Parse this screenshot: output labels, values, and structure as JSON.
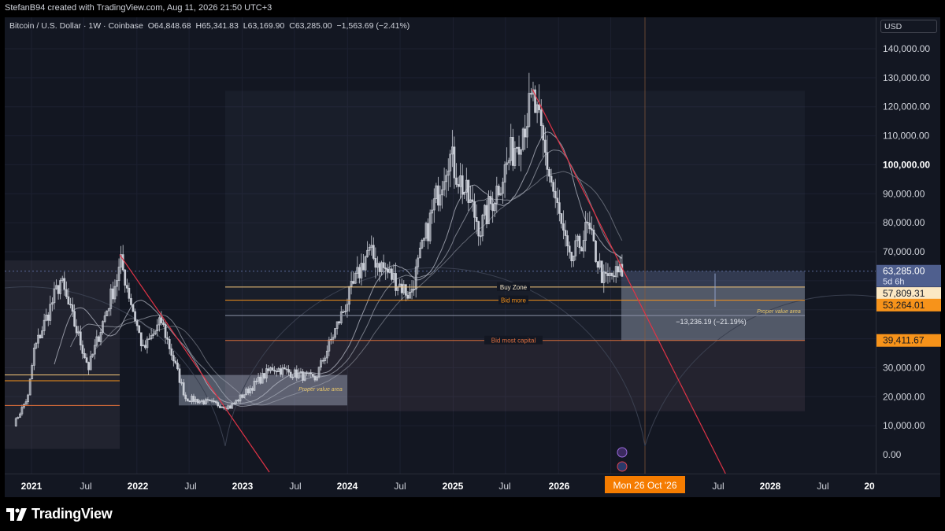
{
  "credit": "StefanB94 created with TradingView.com, Aug 11, 2026 21:50 UTC+3",
  "legend": {
    "symbol": "Bitcoin / U.S. Dollar · 1W · Coinbase",
    "open": "O64,848.68",
    "high": "H65,341.83",
    "low": "L63,169.90",
    "close": "C63,285.00",
    "change": "−1,563.69 (−2.41%)"
  },
  "currency": "USD",
  "brand": "TradingView",
  "colors": {
    "background": "#131722",
    "candles": "#c9cdd6",
    "orange": "#f7931a",
    "buy_zone": "#f6c77a",
    "downtrend": "#e03346",
    "ma": "#b8bcc8",
    "current_price": "#4f5f8e",
    "crosshair_label": "#f57c00"
  },
  "price_axis_labels": [
    "140,000.00",
    "130,000.00",
    "120,000.00",
    "110,000.00",
    "100,000.00",
    "90,000.00",
    "80,000.00",
    "70,000.00",
    "30,000.00",
    "20,000.00",
    "10,000.00",
    "0.00"
  ],
  "price_tags": {
    "current": "63,285.00",
    "countdown": "5d 6h",
    "buy_zone": "57,809.31",
    "bid_more": "53,264.01",
    "bid_most": "39,411.67"
  },
  "time_axis_labels": [
    "2021",
    "Jul",
    "2022",
    "Jul",
    "2023",
    "Jul",
    "2024",
    "Jul",
    "2025",
    "Jul",
    "2026",
    "Jul",
    "2028",
    "Jul",
    "20"
  ],
  "crosshair_date": "Mon 26 Oct '26",
  "annotations": {
    "buy_zone": "Buy Zone",
    "bid_more": "Bid more",
    "bid_most_capital": "Bid most capital",
    "proper_value_area": "Proper value area",
    "measure": "−13,236.19 (−21.19%)"
  },
  "chart_data": {
    "type": "candlestick",
    "symbol": "BTCUSD",
    "interval": "1W",
    "ylim": [
      0,
      145000
    ],
    "x_range": [
      "2020-11-01",
      "2028-11-15"
    ],
    "anchor_points": [
      {
        "date": "2020-11-01",
        "price": 10500
      },
      {
        "date": "2020-12-20",
        "price": 20000
      },
      {
        "date": "2021-01-10",
        "price": 36000
      },
      {
        "date": "2021-04-11",
        "price": 60000
      },
      {
        "date": "2021-07-18",
        "price": 30000
      },
      {
        "date": "2021-11-08",
        "price": 66000
      },
      {
        "date": "2022-01-23",
        "price": 36000
      },
      {
        "date": "2022-03-27",
        "price": 46000
      },
      {
        "date": "2022-06-19",
        "price": 19500
      },
      {
        "date": "2022-11-20",
        "price": 16500
      },
      {
        "date": "2023-04-16",
        "price": 30000
      },
      {
        "date": "2023-09-10",
        "price": 26000
      },
      {
        "date": "2024-03-10",
        "price": 70000
      },
      {
        "date": "2024-08-04",
        "price": 55000
      },
      {
        "date": "2024-12-15",
        "price": 104000
      },
      {
        "date": "2025-04-06",
        "price": 78000
      },
      {
        "date": "2025-10-05",
        "price": 122000
      },
      {
        "date": "2026-02-08",
        "price": 66000
      },
      {
        "date": "2026-04-12",
        "price": 78000
      },
      {
        "date": "2026-06-07",
        "price": 60000
      },
      {
        "date": "2026-08-10",
        "price": 63285
      }
    ],
    "levels": [
      {
        "label": "Buy Zone",
        "price": 57809.31
      },
      {
        "label": "Bid more",
        "price": 53264.01
      },
      {
        "label": "Bid most capital",
        "price": 39411.67
      }
    ]
  }
}
